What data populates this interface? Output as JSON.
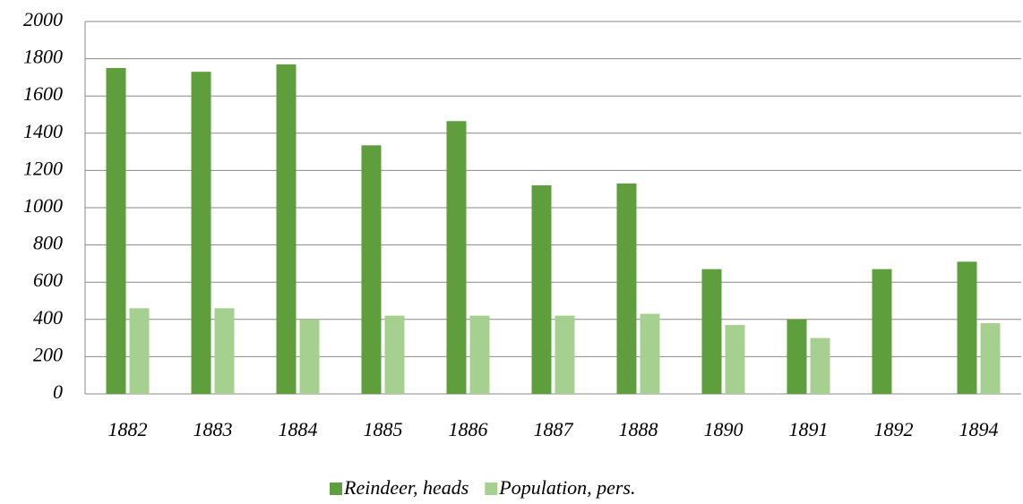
{
  "chart_data": {
    "type": "bar",
    "categories": [
      "1882",
      "1883",
      "1884",
      "1885",
      "1886",
      "1887",
      "1888",
      "1890",
      "1891",
      "1892",
      "1894"
    ],
    "series": [
      {
        "name": "Reindeer, heads",
        "color": "#5e9e3c",
        "values": [
          1750,
          1730,
          1770,
          1335,
          1465,
          1120,
          1130,
          670,
          400,
          670,
          710
        ]
      },
      {
        "name": "Population, pers.",
        "color": "#a6d08f",
        "values": [
          460,
          460,
          400,
          420,
          420,
          420,
          430,
          370,
          300,
          null,
          380
        ]
      }
    ],
    "ylim": [
      0,
      2000
    ],
    "yticks": [
      0,
      200,
      400,
      600,
      800,
      1000,
      1200,
      1400,
      1600,
      1800,
      2000
    ],
    "grid": true,
    "legend": "bottom"
  }
}
